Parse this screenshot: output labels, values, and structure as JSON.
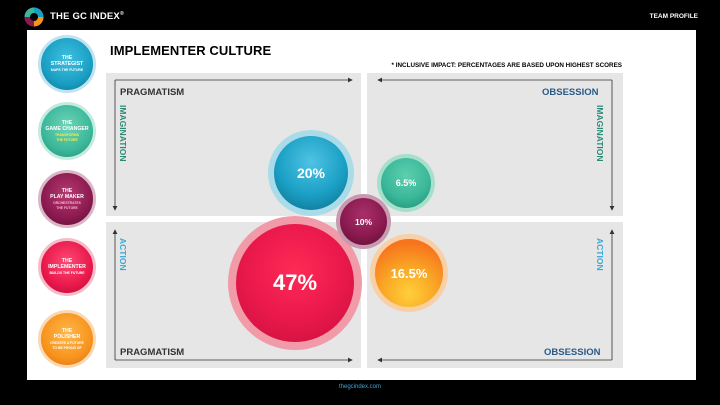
{
  "header": {
    "brand": "THE GC INDEX",
    "brand_mark": "®",
    "section": "TEAM PROFILE"
  },
  "footer": {
    "link": "thegcindex.com"
  },
  "page": {
    "title": "IMPLEMENTER  CULTURE",
    "note": "* INCLUSIVE IMPACT: PERCENTAGES ARE BASED UPON HIGHEST SCORES"
  },
  "roles": [
    {
      "name": "THE\nSTRATEGIST",
      "tag": "MAPS THE FUTURE",
      "color": "#1a9fc4"
    },
    {
      "name": "THE\nGAME CHANGER",
      "tag": "TRANSFORMS\nTHE FUTURE",
      "color": "#3bb89a"
    },
    {
      "name": "THE\nPLAY MAKER",
      "tag": "ORCHESTRATES\nTHE FUTURE",
      "color": "#8a1a4f"
    },
    {
      "name": "THE\nIMPLEMENTER",
      "tag": "BUILDS THE FUTURE",
      "color": "#e8184b"
    },
    {
      "name": "THE\nPOLISHER",
      "tag": "CREATES A FUTURE\nTO BE PROUD OF",
      "color": "#f7941d"
    }
  ],
  "quadrants": {
    "top_left": {
      "label": "PRAGMATISM",
      "side": "IMAGINATION"
    },
    "top_right": {
      "label": "OBSESSION",
      "side": "IMAGINATION"
    },
    "bottom_left": {
      "label": "PRAGMATISM",
      "side": "ACTION"
    },
    "bottom_right": {
      "label": "OBSESSION",
      "side": "ACTION"
    }
  },
  "bubbles": {
    "strategist": "20%",
    "game_changer": "6.5%",
    "play_maker": "10%",
    "implementer": "47%",
    "polisher": "16.5%"
  },
  "colors": {
    "pragmatism": "#333333",
    "obsession": "#2a5a86",
    "imagination": "#2a8a76",
    "action": "#3aa8d8"
  }
}
